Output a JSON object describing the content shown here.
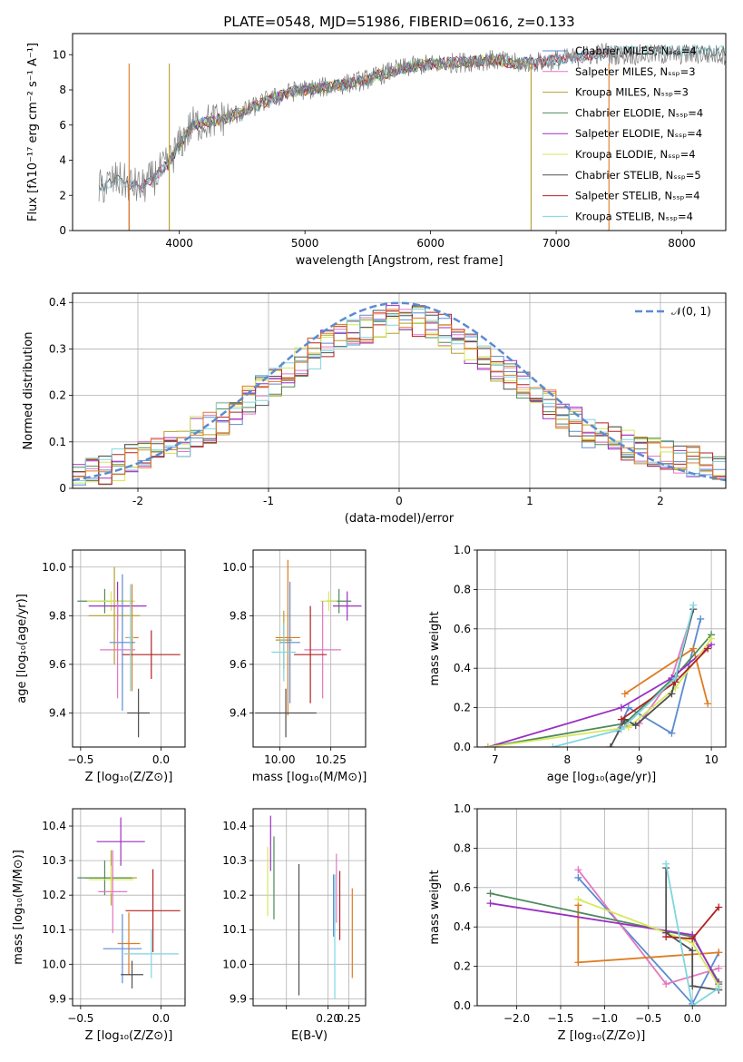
{
  "figure": {
    "title": "PLATE=0548, MJD=51986, FIBERID=0616, z=0.133"
  },
  "chart_data": [
    {
      "id": "spectrum",
      "type": "line",
      "xlabel": "wavelength [Angstrom, rest frame]",
      "ylabel": "Flux [fλ10⁻¹⁷ erg cm⁻² s⁻¹ A⁻¹]",
      "xlim": [
        3150,
        8350
      ],
      "ylim": [
        0,
        11.2
      ],
      "xticks": [
        4000,
        5000,
        6000,
        7000,
        8000
      ],
      "yticks": [
        0,
        2,
        4,
        6,
        8,
        10
      ],
      "grid": false,
      "legend": "upper right",
      "x": [
        3360,
        3500,
        3700,
        3900,
        4100,
        4300,
        4500,
        4700,
        4900,
        5100,
        5300,
        5500,
        5700,
        5900,
        6100,
        6300,
        6500,
        6700,
        6900,
        7100,
        7300,
        7420
      ],
      "y_observed": [
        2.4,
        2.9,
        2.4,
        3.7,
        6.0,
        6.3,
        6.7,
        7.4,
        7.9,
        8.1,
        8.3,
        8.6,
        9.1,
        9.4,
        9.5,
        9.6,
        9.7,
        9.5,
        9.6,
        9.8,
        10.0,
        10.2
      ],
      "series": [
        {
          "name": "Chabrier MILES, N_SSP=4",
          "color": "#5b8bd0",
          "x_start": 3600,
          "x_end": 7420
        },
        {
          "name": "Salpeter MILES, N_SSP=3",
          "color": "#e377c2",
          "x_start": 3600,
          "x_end": 7420
        },
        {
          "name": "Kroupa MILES, N_SSP=3",
          "color": "#b5a02a",
          "x_start": 3920,
          "x_end": 6800
        },
        {
          "name": "Chabrier ELODIE, N_SSP=4",
          "color": "#4e8a5a",
          "x_start": 3920,
          "x_end": 6800
        },
        {
          "name": "Salpeter ELODIE, N_SSP=4",
          "color": "#9b30c0",
          "x_start": 3920,
          "x_end": 6800
        },
        {
          "name": "Kroupa ELODIE, N_SSP=4",
          "color": "#d7e85a",
          "x_start": 3920,
          "x_end": 6800
        },
        {
          "name": "Chabrier STELIB, N_SSP=5",
          "color": "#505050",
          "x_start": 3360,
          "x_end": 8350
        },
        {
          "name": "Salpeter STELIB, N_SSP=4",
          "color": "#b22222",
          "x_start": 3600,
          "x_end": 7420
        },
        {
          "name": "Kroupa STELIB, N_SSP=4",
          "color": "#7fd6e0",
          "x_start": 3360,
          "x_end": 8350
        }
      ]
    },
    {
      "id": "residuals",
      "type": "step",
      "xlabel": "(data-model)/error",
      "ylabel": "Normed distribution",
      "xlim": [
        -2.5,
        2.5
      ],
      "ylim": [
        0,
        0.42
      ],
      "xticks": [
        -2,
        -1,
        0,
        1,
        2
      ],
      "yticks": [
        0.0,
        0.1,
        0.2,
        0.3,
        0.4
      ],
      "grid": true,
      "legend": "upper right",
      "reference_curve": {
        "name": "𝒩(0, 1)",
        "color": "#5b8bd0"
      },
      "bin_width": 0.1,
      "base_histogram": [
        0.03,
        0.035,
        0.04,
        0.05,
        0.06,
        0.07,
        0.08,
        0.09,
        0.1,
        0.12,
        0.13,
        0.15,
        0.17,
        0.19,
        0.21,
        0.23,
        0.25,
        0.27,
        0.29,
        0.31,
        0.32,
        0.33,
        0.34,
        0.35,
        0.36,
        0.37,
        0.36,
        0.35,
        0.34,
        0.32,
        0.3,
        0.28,
        0.26,
        0.24,
        0.22,
        0.2,
        0.18,
        0.16,
        0.14,
        0.12,
        0.11,
        0.1,
        0.09,
        0.08,
        0.075,
        0.07,
        0.065,
        0.06,
        0.055,
        0.05
      ]
    },
    {
      "id": "age-vs-z",
      "type": "errorbar",
      "xlabel": "Z [log₁₀(Z/Z⊙)]",
      "ylabel": "age  [log₁₀(age/yr)]",
      "xlim": [
        -0.55,
        0.15
      ],
      "ylim": [
        9.26,
        10.07
      ],
      "xticks": [
        -0.5,
        0.0
      ],
      "xticklabels": [
        "−0.5",
        "0.0"
      ],
      "yticks": [
        9.4,
        9.6,
        9.8,
        10.0
      ],
      "yticklabels": [
        "9.4",
        "9.6",
        "9.8",
        "10.0"
      ],
      "grid": true,
      "points": [
        {
          "x": -0.29,
          "y": 9.8,
          "xerr": 0.16,
          "yerr": 0.2,
          "color": "#b5a02a"
        },
        {
          "x": -0.35,
          "y": 9.86,
          "xerr": 0.17,
          "yerr": 0.05,
          "color": "#4e8a5a"
        },
        {
          "x": -0.31,
          "y": 9.86,
          "xerr": 0.15,
          "yerr": 0.04,
          "color": "#d7e85a"
        },
        {
          "x": -0.27,
          "y": 9.84,
          "xerr": 0.18,
          "yerr": 0.1,
          "color": "#9b30c0"
        },
        {
          "x": -0.18,
          "y": 9.71,
          "xerr": 0.04,
          "yerr": 0.22,
          "color": "#e07b20"
        },
        {
          "x": -0.24,
          "y": 9.69,
          "xerr": 0.08,
          "yerr": 0.28,
          "color": "#5b8bd0"
        },
        {
          "x": -0.27,
          "y": 9.66,
          "xerr": 0.11,
          "yerr": 0.2,
          "color": "#e377c2"
        },
        {
          "x": -0.06,
          "y": 9.64,
          "xerr": 0.18,
          "yerr": 0.1,
          "color": "#b22222"
        },
        {
          "x": -0.14,
          "y": 9.4,
          "xerr": 0.07,
          "yerr": 0.1,
          "color": "#505050"
        },
        {
          "x": -0.19,
          "y": 9.71,
          "xerr": 0.02,
          "yerr": 0.22,
          "color": "#7fd6e0"
        }
      ]
    },
    {
      "id": "age-vs-mass",
      "type": "errorbar",
      "xlabel": "mass [log₁₀(M/M⊙)]",
      "xlim": [
        9.87,
        10.42
      ],
      "ylim": [
        9.26,
        10.07
      ],
      "xticks": [
        10.0,
        10.25
      ],
      "xticklabels": [
        "10.00",
        "10.25"
      ],
      "yticks": [
        9.4,
        9.6,
        9.8,
        10.0
      ],
      "yticklabels": [
        "9.4",
        "9.6",
        "9.8",
        "10.0"
      ],
      "grid": true,
      "points": [
        {
          "x": 10.02,
          "y": 9.7,
          "xerr": 0.04,
          "yerr": 0.12,
          "color": "#b5a02a"
        },
        {
          "x": 10.29,
          "y": 9.86,
          "xerr": 0.06,
          "yerr": 0.05,
          "color": "#4e8a5a"
        },
        {
          "x": 10.24,
          "y": 9.86,
          "xerr": 0.04,
          "yerr": 0.04,
          "color": "#d7e85a"
        },
        {
          "x": 10.33,
          "y": 9.84,
          "xerr": 0.07,
          "yerr": 0.06,
          "color": "#9b30c0"
        },
        {
          "x": 10.04,
          "y": 9.71,
          "xerr": 0.06,
          "yerr": 0.32,
          "color": "#e07b20"
        },
        {
          "x": 10.05,
          "y": 9.69,
          "xerr": 0.05,
          "yerr": 0.25,
          "color": "#5b8bd0"
        },
        {
          "x": 10.21,
          "y": 9.66,
          "xerr": 0.09,
          "yerr": 0.2,
          "color": "#e377c2"
        },
        {
          "x": 10.15,
          "y": 9.64,
          "xerr": 0.08,
          "yerr": 0.2,
          "color": "#b22222"
        },
        {
          "x": 10.03,
          "y": 9.4,
          "xerr": 0.15,
          "yerr": 0.1,
          "color": "#505050"
        },
        {
          "x": 10.02,
          "y": 9.65,
          "xerr": 0.06,
          "yerr": 0.12,
          "color": "#7fd6e0"
        }
      ]
    },
    {
      "id": "weight-vs-age",
      "type": "line",
      "xlabel": "age  [log₁₀(age/yr)]",
      "ylabel": "mass weight",
      "xlim": [
        6.75,
        10.2
      ],
      "ylim": [
        0,
        1.0
      ],
      "xticks": [
        7,
        8,
        9,
        10
      ],
      "xticklabels": [
        "7",
        "8",
        "9",
        "10"
      ],
      "yticks": [
        0.0,
        0.2,
        0.4,
        0.6,
        0.8,
        1.0
      ],
      "yticklabels": [
        "0.0",
        "0.2",
        "0.4",
        "0.6",
        "0.8",
        "1.0"
      ],
      "grid": true,
      "series": [
        {
          "color": "#5b8bd0",
          "x": [
            8.7,
            8.85,
            9.45,
            9.85
          ],
          "y": [
            0.08,
            0.2,
            0.07,
            0.65
          ]
        },
        {
          "color": "#e377c2",
          "x": [
            8.75,
            9.0,
            9.45,
            9.75
          ],
          "y": [
            0.1,
            0.12,
            0.35,
            0.7
          ]
        },
        {
          "color": "#e07b20",
          "x": [
            8.8,
            9.75,
            9.95
          ],
          "y": [
            0.27,
            0.5,
            0.22
          ]
        },
        {
          "color": "#4e8a5a",
          "x": [
            6.9,
            8.8,
            9.5,
            10.0
          ],
          "y": [
            0.0,
            0.12,
            0.36,
            0.57
          ]
        },
        {
          "color": "#9b30c0",
          "x": [
            6.9,
            8.75,
            9.45,
            10.0
          ],
          "y": [
            0.0,
            0.2,
            0.35,
            0.52
          ]
        },
        {
          "color": "#d7e85a",
          "x": [
            6.9,
            8.85,
            9.5,
            10.0
          ],
          "y": [
            0.0,
            0.1,
            0.3,
            0.55
          ]
        },
        {
          "color": "#505050",
          "x": [
            8.6,
            8.8,
            8.95,
            9.45,
            9.75
          ],
          "y": [
            0.0,
            0.14,
            0.11,
            0.27,
            0.7
          ]
        },
        {
          "color": "#b22222",
          "x": [
            8.75,
            9.5,
            9.95
          ],
          "y": [
            0.14,
            0.33,
            0.5
          ]
        },
        {
          "color": "#7fd6e0",
          "x": [
            7.8,
            8.75,
            9.5,
            9.75
          ],
          "y": [
            0.0,
            0.09,
            0.35,
            0.72
          ]
        }
      ]
    },
    {
      "id": "mass-vs-z",
      "type": "errorbar",
      "xlabel": "Z [log₁₀(Z/Z⊙)]",
      "ylabel": "mass [log₁₀(M/M⊙)]",
      "xlim": [
        -0.55,
        0.15
      ],
      "ylim": [
        9.88,
        10.45
      ],
      "xticks": [
        -0.5,
        0.0
      ],
      "xticklabels": [
        "−0.5",
        "0.0"
      ],
      "yticks": [
        9.9,
        10.0,
        10.1,
        10.2,
        10.3,
        10.4
      ],
      "yticklabels": [
        "9.9",
        "10.0",
        "10.1",
        "10.2",
        "10.3",
        "10.4"
      ],
      "grid": true,
      "points": [
        {
          "x": -0.31,
          "y": 10.25,
          "xerr": 0.16,
          "yerr": 0.08,
          "color": "#b5a02a"
        },
        {
          "x": -0.35,
          "y": 10.25,
          "xerr": 0.17,
          "yerr": 0.05,
          "color": "#4e8a5a"
        },
        {
          "x": -0.31,
          "y": 10.245,
          "xerr": 0.14,
          "yerr": 0.04,
          "color": "#d7e85a"
        },
        {
          "x": -0.25,
          "y": 10.355,
          "xerr": 0.15,
          "yerr": 0.07,
          "color": "#9b30c0"
        },
        {
          "x": -0.2,
          "y": 10.06,
          "xerr": 0.07,
          "yerr": 0.09,
          "color": "#e07b20"
        },
        {
          "x": -0.24,
          "y": 10.045,
          "xerr": 0.12,
          "yerr": 0.1,
          "color": "#5b8bd0"
        },
        {
          "x": -0.3,
          "y": 10.21,
          "xerr": 0.09,
          "yerr": 0.12,
          "color": "#e377c2"
        },
        {
          "x": -0.05,
          "y": 10.155,
          "xerr": 0.17,
          "yerr": 0.12,
          "color": "#b22222"
        },
        {
          "x": -0.18,
          "y": 9.97,
          "xerr": 0.07,
          "yerr": 0.04,
          "color": "#505050"
        },
        {
          "x": -0.06,
          "y": 10.03,
          "xerr": 0.17,
          "yerr": 0.07,
          "color": "#7fd6e0"
        }
      ]
    },
    {
      "id": "mass-vs-ebv",
      "type": "errorbar",
      "xlabel": "E(B-V)",
      "xlim": [
        0.02,
        0.29
      ],
      "ylim": [
        9.88,
        10.45
      ],
      "xticks": [
        0.1,
        0.2,
        0.25
      ],
      "xticklabels": [
        "",
        "0.20",
        "0.25"
      ],
      "yticks": [
        9.9,
        10.0,
        10.1,
        10.2,
        10.3,
        10.4
      ],
      "yticklabels": [
        "9.9",
        "10.0",
        "10.1",
        "10.2",
        "10.3",
        "10.4"
      ],
      "grid": true,
      "points": [
        {
          "x": 0.062,
          "y": 10.35,
          "xerr": 0,
          "yerr": 0.08,
          "color": "#9b30c0"
        },
        {
          "x": 0.055,
          "y": 10.24,
          "xerr": 0,
          "yerr": 0.1,
          "color": "#d7e85a"
        },
        {
          "x": 0.07,
          "y": 10.25,
          "xerr": 0,
          "yerr": 0.12,
          "color": "#4e8a5a"
        },
        {
          "x": 0.13,
          "y": 10.1,
          "xerr": 0,
          "yerr": 0.19,
          "color": "#505050"
        },
        {
          "x": 0.213,
          "y": 10.17,
          "xerr": 0,
          "yerr": 0.09,
          "color": "#5b8bd0"
        },
        {
          "x": 0.22,
          "y": 10.22,
          "xerr": 0,
          "yerr": 0.1,
          "color": "#e377c2"
        },
        {
          "x": 0.228,
          "y": 10.17,
          "xerr": 0,
          "yerr": 0.1,
          "color": "#b22222"
        },
        {
          "x": 0.216,
          "y": 10.08,
          "xerr": 0,
          "yerr": 0.18,
          "color": "#7fd6e0"
        },
        {
          "x": 0.258,
          "y": 10.09,
          "xerr": 0,
          "yerr": 0.13,
          "color": "#e07b20"
        }
      ]
    },
    {
      "id": "weight-vs-z",
      "type": "line",
      "xlabel": "Z [log₁₀(Z/Z⊙)]",
      "ylabel": "mass weight",
      "xlim": [
        -2.45,
        0.38
      ],
      "ylim": [
        0,
        1.0
      ],
      "xticks": [
        -2.0,
        -1.5,
        -1.0,
        -0.5,
        0.0
      ],
      "xticklabels": [
        "−2.0",
        "−1.5",
        "−1.0",
        "−0.5",
        "0.0"
      ],
      "yticks": [
        0.0,
        0.2,
        0.4,
        0.6,
        0.8,
        1.0
      ],
      "yticklabels": [
        "0.0",
        "0.2",
        "0.4",
        "0.6",
        "0.8",
        "1.0"
      ],
      "grid": true,
      "series": [
        {
          "color": "#5b8bd0",
          "x": [
            -1.3,
            0.0,
            0.3
          ],
          "y": [
            0.65,
            0.01,
            0.27
          ]
        },
        {
          "color": "#e377c2",
          "x": [
            -1.3,
            -0.3,
            0.3
          ],
          "y": [
            0.69,
            0.11,
            0.19
          ]
        },
        {
          "color": "#e07b20",
          "x": [
            -1.3,
            -1.3,
            0.3
          ],
          "y": [
            0.51,
            0.22,
            0.27
          ]
        },
        {
          "color": "#4e8a5a",
          "x": [
            -2.3,
            0.0,
            0.3
          ],
          "y": [
            0.57,
            0.35,
            0.12
          ]
        },
        {
          "color": "#9b30c0",
          "x": [
            -2.3,
            0.0,
            0.3
          ],
          "y": [
            0.52,
            0.36,
            0.11
          ]
        },
        {
          "color": "#d7e85a",
          "x": [
            -1.3,
            0.0,
            0.3
          ],
          "y": [
            0.54,
            0.32,
            0.1
          ]
        },
        {
          "color": "#505050",
          "x": [
            -0.3,
            -0.3,
            0.0,
            0.0,
            0.3
          ],
          "y": [
            0.7,
            0.37,
            0.28,
            0.1,
            0.08
          ]
        },
        {
          "color": "#b22222",
          "x": [
            -0.3,
            0.0,
            0.3
          ],
          "y": [
            0.35,
            0.34,
            0.5
          ]
        },
        {
          "color": "#7fd6e0",
          "x": [
            -0.3,
            0.0,
            0.3
          ],
          "y": [
            0.72,
            0.0,
            0.09
          ]
        }
      ]
    }
  ]
}
